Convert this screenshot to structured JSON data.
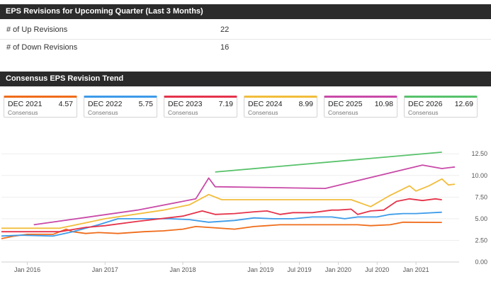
{
  "revisions": {
    "title": "EPS Revisions for Upcoming Quarter (Last 3 Months)",
    "rows": [
      {
        "label": "# of Up Revisions",
        "value": "22"
      },
      {
        "label": "# of Down Revisions",
        "value": "16"
      }
    ]
  },
  "trend": {
    "title": "Consensus EPS Revision Trend",
    "cards": [
      {
        "title": "DEC 2021",
        "value": "4.57",
        "sub": "Consensus",
        "color": "#ef6c1a"
      },
      {
        "title": "DEC 2022",
        "value": "5.75",
        "sub": "Consensus",
        "color": "#3d9be9"
      },
      {
        "title": "DEC 2023",
        "value": "7.19",
        "sub": "Consensus",
        "color": "#e5334a"
      },
      {
        "title": "DEC 2024",
        "value": "8.99",
        "sub": "Consensus",
        "color": "#f2bd3b"
      },
      {
        "title": "DEC 2025",
        "value": "10.98",
        "sub": "Consensus",
        "color": "#c94aa8"
      },
      {
        "title": "DEC 2026",
        "value": "12.69",
        "sub": "Consensus",
        "color": "#58c26a"
      }
    ]
  },
  "chart_data": {
    "type": "line",
    "grid": true,
    "ylim": [
      0,
      13.5
    ],
    "xlim": [
      "2015-09",
      "2021-07"
    ],
    "yaxis_position": "right",
    "ytick_labels": [
      "0.00",
      "2.50",
      "5.00",
      "7.50",
      "10.00",
      "12.50"
    ],
    "ytick_values": [
      0,
      2.5,
      5,
      7.5,
      10,
      12.5
    ],
    "xtick_labels": [
      "Jan 2016",
      "Jan 2017",
      "Jan 2018",
      "Jan 2019",
      "Jul 2019",
      "Jan 2020",
      "Jul 2020",
      "Jan 2021"
    ],
    "xtick_values": [
      "2016-01",
      "2017-01",
      "2018-01",
      "2019-01",
      "2019-07",
      "2020-01",
      "2020-07",
      "2021-01"
    ],
    "series": [
      {
        "name": "DEC 2021",
        "color": "#ef6c1a",
        "points": [
          [
            "2015-09",
            2.7
          ],
          [
            "2015-11",
            3.0
          ],
          [
            "2016-01",
            3.2
          ],
          [
            "2016-05",
            3.2
          ],
          [
            "2016-07",
            3.8
          ],
          [
            "2016-08",
            3.5
          ],
          [
            "2016-10",
            3.3
          ],
          [
            "2016-12",
            3.4
          ],
          [
            "2017-03",
            3.3
          ],
          [
            "2017-07",
            3.5
          ],
          [
            "2017-10",
            3.6
          ],
          [
            "2018-01",
            3.8
          ],
          [
            "2018-03",
            4.1
          ],
          [
            "2018-05",
            4.0
          ],
          [
            "2018-09",
            3.8
          ],
          [
            "2018-12",
            4.1
          ],
          [
            "2019-04",
            4.3
          ],
          [
            "2019-08",
            4.3
          ],
          [
            "2019-12",
            4.3
          ],
          [
            "2020-04",
            4.3
          ],
          [
            "2020-06",
            4.2
          ],
          [
            "2020-09",
            4.3
          ],
          [
            "2020-11",
            4.6
          ],
          [
            "2021-05",
            4.57
          ]
        ]
      },
      {
        "name": "DEC 2022",
        "color": "#3d9be9",
        "points": [
          [
            "2015-09",
            3.0
          ],
          [
            "2015-12",
            3.1
          ],
          [
            "2016-05",
            3.0
          ],
          [
            "2016-08",
            3.5
          ],
          [
            "2016-12",
            4.3
          ],
          [
            "2017-03",
            5.0
          ],
          [
            "2017-07",
            5.0
          ],
          [
            "2017-11",
            5.0
          ],
          [
            "2018-02",
            4.9
          ],
          [
            "2018-05",
            4.6
          ],
          [
            "2018-09",
            4.8
          ],
          [
            "2018-12",
            5.1
          ],
          [
            "2019-03",
            5.0
          ],
          [
            "2019-06",
            5.0
          ],
          [
            "2019-09",
            5.2
          ],
          [
            "2019-12",
            5.2
          ],
          [
            "2020-02",
            5.0
          ],
          [
            "2020-04",
            5.2
          ],
          [
            "2020-07",
            5.2
          ],
          [
            "2020-09",
            5.5
          ],
          [
            "2020-11",
            5.6
          ],
          [
            "2021-01",
            5.6
          ],
          [
            "2021-05",
            5.75
          ]
        ]
      },
      {
        "name": "DEC 2023",
        "color": "#e5334a",
        "points": [
          [
            "2015-09",
            3.5
          ],
          [
            "2016-02",
            3.5
          ],
          [
            "2016-06",
            3.5
          ],
          [
            "2016-10",
            4.0
          ],
          [
            "2017-01",
            4.2
          ],
          [
            "2017-06",
            4.7
          ],
          [
            "2018-01",
            5.3
          ],
          [
            "2018-04",
            5.9
          ],
          [
            "2018-06",
            5.5
          ],
          [
            "2018-09",
            5.6
          ],
          [
            "2018-12",
            5.8
          ],
          [
            "2019-02",
            5.9
          ],
          [
            "2019-04",
            5.5
          ],
          [
            "2019-06",
            5.7
          ],
          [
            "2019-09",
            5.7
          ],
          [
            "2019-12",
            6.0
          ],
          [
            "2020-01",
            6.0
          ],
          [
            "2020-03",
            6.1
          ],
          [
            "2020-04",
            5.5
          ],
          [
            "2020-06",
            5.9
          ],
          [
            "2020-08",
            6.0
          ],
          [
            "2020-10",
            7.0
          ],
          [
            "2020-12",
            7.3
          ],
          [
            "2021-02",
            7.1
          ],
          [
            "2021-04",
            7.3
          ],
          [
            "2021-05",
            7.19
          ]
        ]
      },
      {
        "name": "DEC 2024",
        "color": "#f2bd3b",
        "points": [
          [
            "2015-09",
            3.9
          ],
          [
            "2016-06",
            3.9
          ],
          [
            "2017-01",
            5.0
          ],
          [
            "2017-10",
            6.0
          ],
          [
            "2018-02",
            6.6
          ],
          [
            "2018-05",
            7.8
          ],
          [
            "2018-07",
            7.2
          ],
          [
            "2020-03",
            7.2
          ],
          [
            "2020-06",
            6.4
          ],
          [
            "2020-09",
            7.7
          ],
          [
            "2020-12",
            8.8
          ],
          [
            "2021-01",
            8.2
          ],
          [
            "2021-03",
            8.8
          ],
          [
            "2021-05",
            9.6
          ],
          [
            "2021-06",
            8.9
          ],
          [
            "2021-07",
            8.99
          ]
        ]
      },
      {
        "name": "DEC 2025",
        "color": "#c94aa8",
        "points": [
          [
            "2016-02",
            4.3
          ],
          [
            "2017-06",
            6.0
          ],
          [
            "2018-03",
            7.3
          ],
          [
            "2018-05",
            9.7
          ],
          [
            "2018-06",
            8.7
          ],
          [
            "2019-11",
            8.5
          ],
          [
            "2021-02",
            11.2
          ],
          [
            "2021-05",
            10.8
          ],
          [
            "2021-07",
            10.98
          ]
        ]
      },
      {
        "name": "DEC 2026",
        "color": "#58c26a",
        "points": [
          [
            "2018-06",
            10.4
          ],
          [
            "2021-05",
            12.69
          ]
        ]
      }
    ]
  }
}
